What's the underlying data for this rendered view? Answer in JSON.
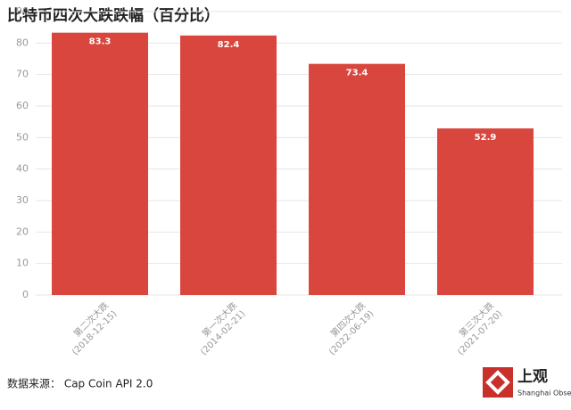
{
  "chart_data": {
    "type": "bar",
    "title": "比特币四次大跌跌幅（百分比）",
    "categories": [
      "第二次大跌\n(2018-12-15)",
      "第一次大跌\n(2014-02-21)",
      "第四次大跌\n(2022-06-19)",
      "第三次大跌\n(2021-07-20)"
    ],
    "values": [
      83.3,
      82.4,
      73.4,
      52.9
    ],
    "color": "#d8463d",
    "ylim": [
      0,
      90
    ],
    "yticks": [
      0,
      10,
      20,
      30,
      40,
      50,
      60,
      70,
      80,
      90
    ],
    "grid": true,
    "source": "数据来源： Cap Coin API 2.0"
  },
  "logo": {
    "name": "上观",
    "subtitle": "Shanghai Observer"
  }
}
